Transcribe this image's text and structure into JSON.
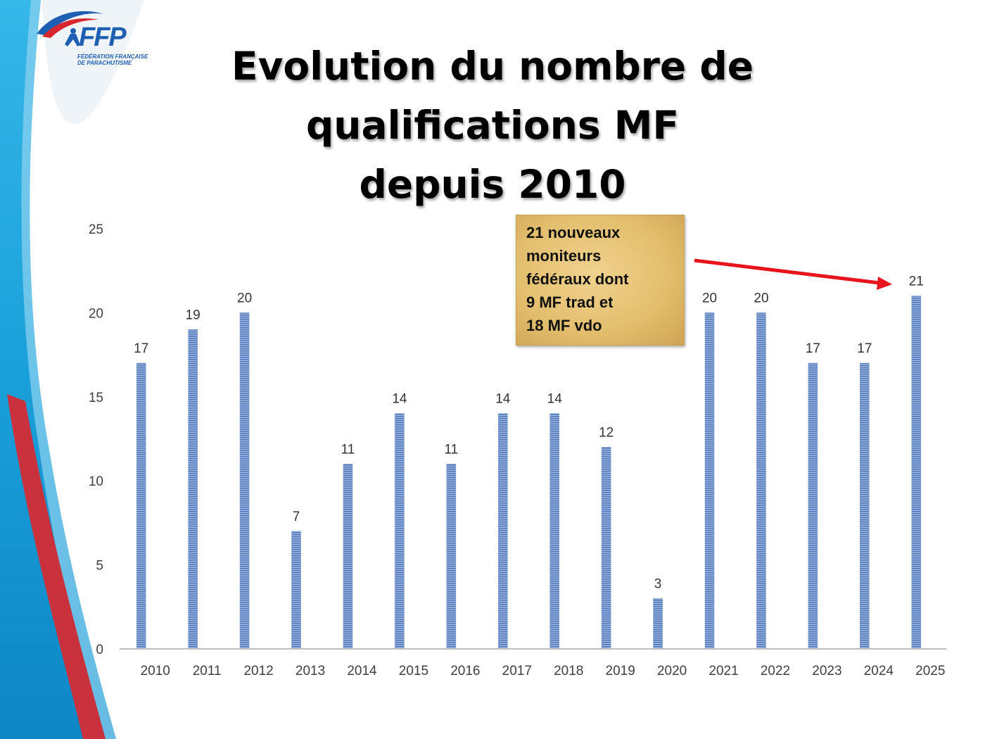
{
  "logo": {
    "name": "FFP",
    "subtitle_line1": "FÉDÉRATION FRANÇAISE",
    "subtitle_line2": "DE PARACHUTISME"
  },
  "title_lines": [
    "Evolution du nombre de",
    "qualifications MF",
    "depuis 2010"
  ],
  "callout_lines": [
    "21 nouveaux",
    "moniteurs",
    "fédéraux dont",
    "9 MF trad et",
    "18 MF vdo"
  ],
  "colors": {
    "bar": "#6f93cd",
    "bar_stripe": "#4f76b8",
    "arrow": "#e8141c",
    "axis": "#bfbfbf"
  },
  "chart_data": {
    "type": "bar",
    "title": "Evolution du nombre de qualifications MF depuis 2010",
    "categories": [
      "2010",
      "2011",
      "2012",
      "2013",
      "2014",
      "2015",
      "2016",
      "2017",
      "2018",
      "2019",
      "2020",
      "2021",
      "2022",
      "2023",
      "2024",
      "2025"
    ],
    "values": [
      17,
      19,
      20,
      7,
      11,
      14,
      11,
      14,
      14,
      12,
      3,
      20,
      20,
      17,
      17,
      21
    ],
    "ylim": [
      0,
      25
    ],
    "yticks": [
      0,
      5,
      10,
      15,
      20,
      25
    ],
    "data_labels": true,
    "grid": false,
    "legend": "none",
    "annotation": {
      "text": "21 nouveaux moniteurs fédéraux dont 9 MF trad et 18 MF vdo",
      "points_to": "2025"
    }
  }
}
